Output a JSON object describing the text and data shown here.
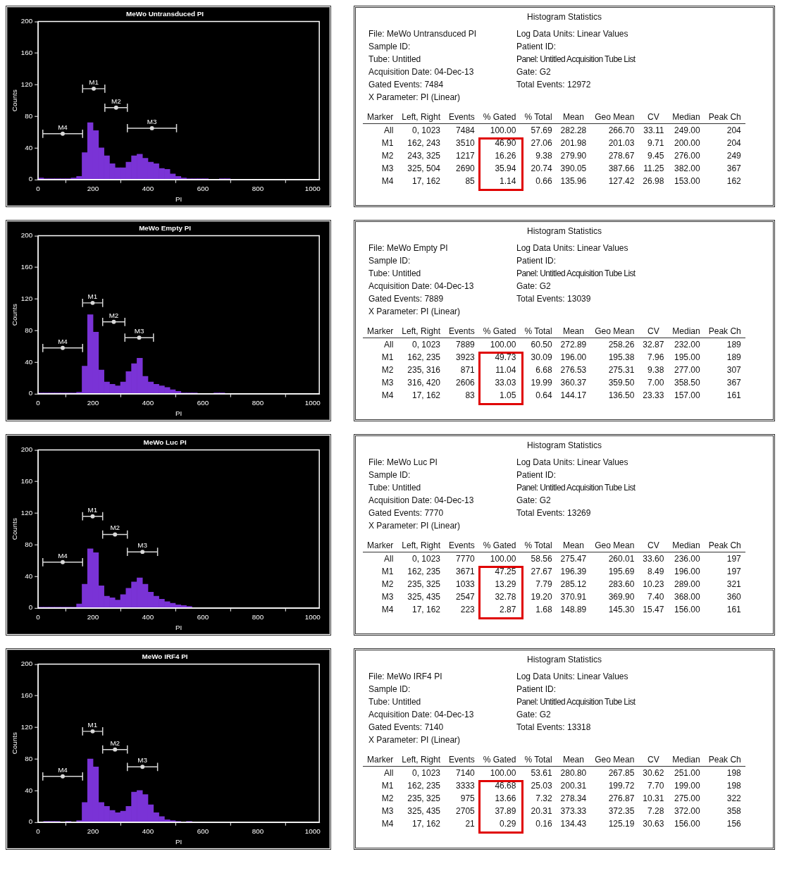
{
  "chart_data": [
    {
      "type": "histogram",
      "title": "MeWo Untransduced PI",
      "xlabel": "PI",
      "ylabel": "Counts",
      "color": "#7a33d6",
      "grid": false,
      "xlim": [
        0,
        1024
      ],
      "xticks": [
        0,
        200,
        400,
        600,
        800,
        1000
      ],
      "ylim": [
        0,
        200
      ],
      "yticks": [
        0,
        40,
        80,
        120,
        160,
        200
      ],
      "bins": [
        0,
        20,
        40,
        60,
        80,
        100,
        120,
        140,
        160,
        180,
        200,
        220,
        240,
        260,
        280,
        300,
        320,
        340,
        360,
        380,
        400,
        420,
        440,
        460,
        480,
        500,
        520,
        540,
        560,
        580,
        600,
        620,
        640,
        660,
        680,
        700
      ],
      "values": [
        2,
        1,
        1,
        1,
        1,
        1,
        2,
        4,
        34,
        72,
        62,
        40,
        30,
        20,
        15,
        15,
        22,
        30,
        32,
        27,
        22,
        20,
        14,
        13,
        7,
        4,
        2,
        1,
        1,
        1,
        1,
        0,
        0,
        1,
        1
      ],
      "series": [
        {
          "type": "scatter",
          "color": "#d9d9d9",
          "x": [
            202.5,
            284,
            414.5,
            89.5
          ],
          "values": [
            115,
            91,
            65,
            58
          ],
          "xerrors": [
            40.5,
            41,
            89.5,
            72.5
          ]
        }
      ],
      "annotations": [
        {
          "text": "M1",
          "x": 202.5,
          "y": 115
        },
        {
          "text": "M2",
          "x": 284,
          "y": 91
        },
        {
          "text": "M3",
          "x": 414.5,
          "y": 65
        },
        {
          "text": "M4",
          "x": 89.5,
          "y": 58
        }
      ]
    },
    {
      "type": "other",
      "title": "Histogram Statistics",
      "annotations": [
        "File: MeWo Untransduced PI",
        "Sample ID:",
        "Tube: Untitled",
        "Acquisition Date: 04-Dec-13",
        "Gated Events: 7484",
        "X Parameter: PI (Linear)",
        "Log Data Units: Linear Values",
        "Patient ID:",
        "Panel: Untitled Acquisition Tube List",
        "Gate: G2",
        "Total Events: 12972"
      ],
      "categories": [
        "Marker",
        "Left, Right",
        "Events",
        "% Gated",
        "% Total",
        "Mean",
        "Geo Mean",
        "CV",
        "Median",
        "Peak Ch"
      ],
      "cell_labels": [
        [
          "All",
          "0, 1023",
          "7484",
          "100.00",
          "57.69",
          "282.28",
          "266.70",
          "33.11",
          "249.00",
          "204"
        ],
        [
          "M1",
          "162, 243",
          "3510",
          "46.90",
          "27.06",
          "201.98",
          "201.03",
          "9.71",
          "200.00",
          "204"
        ],
        [
          "M2",
          "243, 325",
          "1217",
          "16.26",
          "9.38",
          "279.90",
          "278.67",
          "9.45",
          "276.00",
          "249"
        ],
        [
          "M3",
          "325, 504",
          "2690",
          "35.94",
          "20.74",
          "390.05",
          "387.66",
          "11.25",
          "382.00",
          "367"
        ],
        [
          "M4",
          "17, 162",
          "85",
          "1.14",
          "0.66",
          "135.96",
          "127.42",
          "26.98",
          "153.00",
          "162"
        ]
      ]
    },
    {
      "type": "histogram",
      "title": "MeWo Empty PI",
      "xlabel": "PI",
      "ylabel": "Counts",
      "color": "#7a33d6",
      "grid": false,
      "xlim": [
        0,
        1024
      ],
      "xticks": [
        0,
        200,
        400,
        600,
        800,
        1000
      ],
      "ylim": [
        0,
        200
      ],
      "yticks": [
        0,
        40,
        80,
        120,
        160,
        200
      ],
      "bins": [
        0,
        20,
        40,
        60,
        80,
        100,
        120,
        140,
        160,
        180,
        200,
        220,
        240,
        260,
        280,
        300,
        320,
        340,
        360,
        380,
        400,
        420,
        440,
        460,
        480,
        500,
        520,
        540,
        560,
        580,
        600,
        620,
        640,
        660,
        680,
        700
      ],
      "values": [
        1,
        1,
        1,
        1,
        1,
        1,
        1,
        2,
        35,
        100,
        78,
        30,
        15,
        12,
        10,
        15,
        28,
        38,
        45,
        22,
        15,
        12,
        10,
        8,
        5,
        3,
        1,
        1,
        1,
        0,
        0,
        0,
        1,
        1,
        0
      ],
      "series": [
        {
          "type": "scatter",
          "color": "#d9d9d9",
          "x": [
            198.5,
            275.5,
            368,
            89.5
          ],
          "values": [
            115,
            91,
            71,
            58
          ],
          "xerrors": [
            36.5,
            40.5,
            52,
            72.5
          ]
        }
      ],
      "annotations": [
        {
          "text": "M1",
          "x": 198.5,
          "y": 115
        },
        {
          "text": "M2",
          "x": 275.5,
          "y": 91
        },
        {
          "text": "M3",
          "x": 368,
          "y": 71
        },
        {
          "text": "M4",
          "x": 89.5,
          "y": 58
        }
      ]
    },
    {
      "type": "other",
      "title": "Histogram Statistics",
      "annotations": [
        "File: MeWo Empty PI",
        "Sample ID:",
        "Tube: Untitled",
        "Acquisition Date: 04-Dec-13",
        "Gated Events: 7889",
        "X Parameter: PI (Linear)",
        "Log Data Units: Linear Values",
        "Patient ID:",
        "Panel: Untitled Acquisition Tube List",
        "Gate: G2",
        "Total Events: 13039"
      ],
      "categories": [
        "Marker",
        "Left, Right",
        "Events",
        "% Gated",
        "% Total",
        "Mean",
        "Geo Mean",
        "CV",
        "Median",
        "Peak Ch"
      ],
      "cell_labels": [
        [
          "All",
          "0, 1023",
          "7889",
          "100.00",
          "60.50",
          "272.89",
          "258.26",
          "32.87",
          "232.00",
          "189"
        ],
        [
          "M1",
          "162, 235",
          "3923",
          "49.73",
          "30.09",
          "196.00",
          "195.38",
          "7.96",
          "195.00",
          "189"
        ],
        [
          "M2",
          "235, 316",
          "871",
          "11.04",
          "6.68",
          "276.53",
          "275.31",
          "9.38",
          "277.00",
          "307"
        ],
        [
          "M3",
          "316, 420",
          "2606",
          "33.03",
          "19.99",
          "360.37",
          "359.50",
          "7.00",
          "358.50",
          "367"
        ],
        [
          "M4",
          "17, 162",
          "83",
          "1.05",
          "0.64",
          "144.17",
          "136.50",
          "23.33",
          "157.00",
          "161"
        ]
      ]
    },
    {
      "type": "histogram",
      "title": "MeWo Luc PI",
      "xlabel": "PI",
      "ylabel": "Counts",
      "color": "#7a33d6",
      "grid": false,
      "xlim": [
        0,
        1024
      ],
      "xticks": [
        0,
        200,
        400,
        600,
        800,
        1000
      ],
      "ylim": [
        0,
        200
      ],
      "yticks": [
        0,
        40,
        80,
        120,
        160,
        200
      ],
      "bins": [
        0,
        20,
        40,
        60,
        80,
        100,
        120,
        140,
        160,
        180,
        200,
        220,
        240,
        260,
        280,
        300,
        320,
        340,
        360,
        380,
        400,
        420,
        440,
        460,
        480,
        500,
        520,
        540,
        560,
        580,
        600,
        620,
        640,
        660,
        680,
        700
      ],
      "values": [
        1,
        1,
        1,
        1,
        1,
        1,
        1,
        5,
        30,
        75,
        70,
        28,
        15,
        13,
        10,
        17,
        25,
        33,
        38,
        30,
        20,
        15,
        11,
        8,
        6,
        4,
        3,
        2,
        0,
        0,
        0,
        0,
        0,
        0,
        0
      ],
      "series": [
        {
          "type": "scatter",
          "color": "#d9d9d9",
          "x": [
            198.5,
            280,
            380,
            89.5
          ],
          "values": [
            116,
            93,
            71,
            58
          ],
          "xerrors": [
            36.5,
            45,
            55,
            72.5
          ]
        }
      ],
      "annotations": [
        {
          "text": "M1",
          "x": 198.5,
          "y": 116
        },
        {
          "text": "M2",
          "x": 280,
          "y": 93
        },
        {
          "text": "M3",
          "x": 380,
          "y": 71
        },
        {
          "text": "M4",
          "x": 89.5,
          "y": 58
        }
      ]
    },
    {
      "type": "other",
      "title": "Histogram Statistics",
      "annotations": [
        "File: MeWo Luc PI",
        "Sample ID:",
        "Tube: Untitled",
        "Acquisition Date: 04-Dec-13",
        "Gated Events: 7770",
        "X Parameter: PI (Linear)",
        "Log Data Units: Linear Values",
        "Patient ID:",
        "Panel: Untitled Acquisition Tube List",
        "Gate: G2",
        "Total Events: 13269"
      ],
      "categories": [
        "Marker",
        "Left, Right",
        "Events",
        "% Gated",
        "% Total",
        "Mean",
        "Geo Mean",
        "CV",
        "Median",
        "Peak Ch"
      ],
      "cell_labels": [
        [
          "All",
          "0, 1023",
          "7770",
          "100.00",
          "58.56",
          "275.47",
          "260.01",
          "33.60",
          "236.00",
          "197"
        ],
        [
          "M1",
          "162, 235",
          "3671",
          "47.25",
          "27.67",
          "196.39",
          "195.69",
          "8.49",
          "196.00",
          "197"
        ],
        [
          "M2",
          "235, 325",
          "1033",
          "13.29",
          "7.79",
          "285.12",
          "283.60",
          "10.23",
          "289.00",
          "321"
        ],
        [
          "M3",
          "325, 435",
          "2547",
          "32.78",
          "19.20",
          "370.91",
          "369.90",
          "7.40",
          "368.00",
          "360"
        ],
        [
          "M4",
          "17, 162",
          "223",
          "2.87",
          "1.68",
          "148.89",
          "145.30",
          "15.47",
          "156.00",
          "161"
        ]
      ]
    },
    {
      "type": "histogram",
      "title": "MeWo IRF4 PI",
      "xlabel": "PI",
      "ylabel": "Counts",
      "color": "#7a33d6",
      "grid": false,
      "xlim": [
        0,
        1024
      ],
      "xticks": [
        0,
        200,
        400,
        600,
        800,
        1000
      ],
      "ylim": [
        0,
        200
      ],
      "yticks": [
        0,
        40,
        80,
        120,
        160,
        200
      ],
      "bins": [
        0,
        20,
        40,
        60,
        80,
        100,
        120,
        140,
        160,
        180,
        200,
        220,
        240,
        260,
        280,
        300,
        320,
        340,
        360,
        380,
        400,
        420,
        440,
        460,
        480,
        500,
        520,
        540,
        560,
        580,
        600,
        620,
        640,
        660,
        680,
        700
      ],
      "values": [
        0,
        1,
        1,
        1,
        0,
        1,
        0,
        2,
        25,
        80,
        70,
        25,
        20,
        15,
        12,
        14,
        20,
        38,
        40,
        35,
        22,
        12,
        7,
        3,
        2,
        1,
        0,
        1,
        0,
        0,
        0,
        0,
        0,
        0,
        0
      ],
      "series": [
        {
          "type": "scatter",
          "color": "#d9d9d9",
          "x": [
            198.5,
            280,
            380,
            89.5
          ],
          "values": [
            115,
            92,
            70,
            58
          ],
          "xerrors": [
            36.5,
            45,
            55,
            72.5
          ]
        }
      ],
      "annotations": [
        {
          "text": "M1",
          "x": 198.5,
          "y": 115
        },
        {
          "text": "M2",
          "x": 280,
          "y": 92
        },
        {
          "text": "M3",
          "x": 380,
          "y": 70
        },
        {
          "text": "M4",
          "x": 89.5,
          "y": 58
        }
      ]
    },
    {
      "type": "other",
      "title": "Histogram Statistics",
      "annotations": [
        "File: MeWo IRF4 PI",
        "Sample ID:",
        "Tube: Untitled",
        "Acquisition Date: 04-Dec-13",
        "Gated Events: 7140",
        "X Parameter: PI (Linear)",
        "Log Data Units: Linear Values",
        "Patient ID:",
        "Panel: Untitled Acquisition Tube List",
        "Gate: G2",
        "Total Events: 13318"
      ],
      "categories": [
        "Marker",
        "Left, Right",
        "Events",
        "% Gated",
        "% Total",
        "Mean",
        "Geo Mean",
        "CV",
        "Median",
        "Peak Ch"
      ],
      "cell_labels": [
        [
          "All",
          "0, 1023",
          "7140",
          "100.00",
          "53.61",
          "280.80",
          "267.85",
          "30.62",
          "251.00",
          "198"
        ],
        [
          "M1",
          "162, 235",
          "3333",
          "46.68",
          "25.03",
          "200.31",
          "199.72",
          "7.70",
          "199.00",
          "198"
        ],
        [
          "M2",
          "235, 325",
          "975",
          "13.66",
          "7.32",
          "278.34",
          "276.87",
          "10.31",
          "275.00",
          "322"
        ],
        [
          "M3",
          "325, 435",
          "2705",
          "37.89",
          "20.31",
          "373.33",
          "372.35",
          "7.28",
          "372.00",
          "358"
        ],
        [
          "M4",
          "17, 162",
          "21",
          "0.29",
          "0.16",
          "134.43",
          "125.19",
          "30.63",
          "156.00",
          "156"
        ]
      ]
    }
  ]
}
